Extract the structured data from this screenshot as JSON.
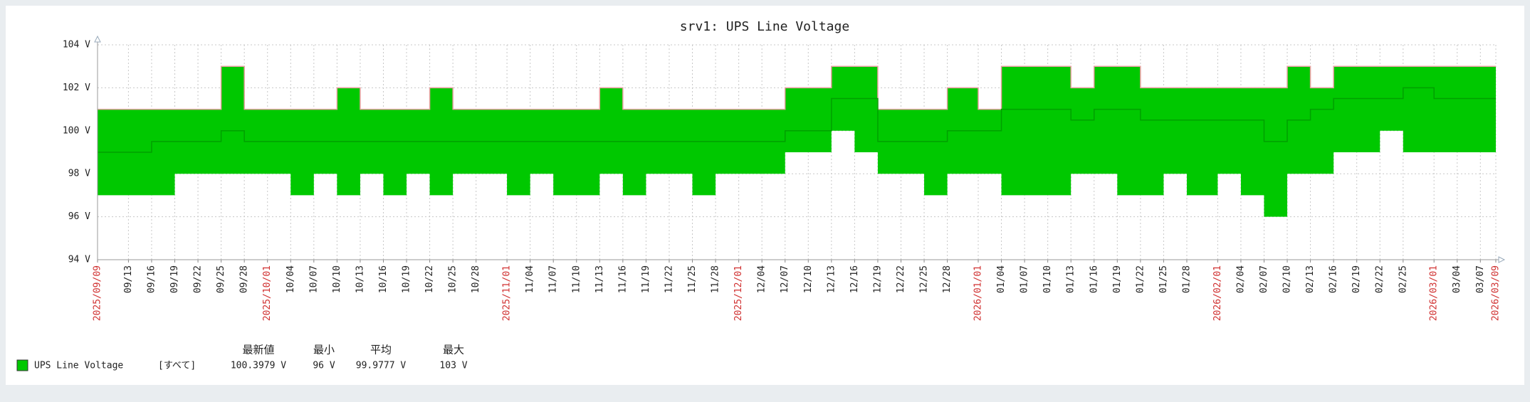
{
  "chart_data": {
    "type": "line",
    "title": "srv1: UPS Line Voltage",
    "x": [
      "2025/09/09",
      "2025/09/13",
      "2025/09/16",
      "2025/09/19",
      "2025/09/22",
      "2025/09/25",
      "2025/09/28",
      "2025/10/01",
      "2025/10/04",
      "2025/10/07",
      "2025/10/10",
      "2025/10/13",
      "2025/10/16",
      "2025/10/19",
      "2025/10/22",
      "2025/10/25",
      "2025/10/28",
      "2025/11/01",
      "2025/11/04",
      "2025/11/07",
      "2025/11/10",
      "2025/11/13",
      "2025/11/16",
      "2025/11/19",
      "2025/11/22",
      "2025/11/25",
      "2025/11/28",
      "2025/12/01",
      "2025/12/04",
      "2025/12/07",
      "2025/12/10",
      "2025/12/13",
      "2025/12/16",
      "2025/12/19",
      "2025/12/22",
      "2025/12/25",
      "2025/12/28",
      "2026/01/01",
      "2026/01/04",
      "2026/01/07",
      "2026/01/10",
      "2026/01/13",
      "2026/01/16",
      "2026/01/19",
      "2026/01/22",
      "2026/01/25",
      "2026/01/28",
      "2026/02/01",
      "2026/02/04",
      "2026/02/07",
      "2026/02/10",
      "2026/02/13",
      "2026/02/16",
      "2026/02/19",
      "2026/02/22",
      "2026/02/25",
      "2026/03/01",
      "2026/03/04",
      "2026/03/07",
      "2026/03/09"
    ],
    "series": [
      {
        "name": "UPS Line Voltage",
        "color": "#00c800",
        "avg_color": "#00a000",
        "max_color": "#e8a0a0",
        "max": [
          101,
          101,
          101,
          101,
          101,
          103,
          101,
          101,
          101,
          101,
          102,
          101,
          101,
          101,
          102,
          101,
          101,
          101,
          101,
          101,
          101,
          102,
          101,
          101,
          101,
          101,
          101,
          101,
          101,
          102,
          102,
          103,
          103,
          101,
          101,
          101,
          102,
          101,
          103,
          103,
          103,
          102,
          103,
          103,
          102,
          102,
          102,
          102,
          102,
          102,
          103,
          102,
          103,
          103,
          103,
          103,
          103,
          103,
          103,
          103
        ],
        "avg": [
          99,
          99,
          99.5,
          99.5,
          99.5,
          100,
          99.5,
          99.5,
          99.5,
          99.5,
          99.5,
          99.5,
          99.5,
          99.5,
          99.5,
          99.5,
          99.5,
          99.5,
          99.5,
          99.5,
          99.5,
          99.5,
          99.5,
          99.5,
          99.5,
          99.5,
          99.5,
          99.5,
          99.5,
          100,
          100,
          101.5,
          101.5,
          99.5,
          99.5,
          99.5,
          100,
          100,
          101,
          101,
          101,
          100.5,
          101,
          101,
          100.5,
          100.5,
          100.5,
          100.5,
          100.5,
          99.5,
          100.5,
          101,
          101.5,
          101.5,
          101.5,
          102,
          101.5,
          101.5,
          101.5,
          101.5
        ],
        "min": [
          97,
          97,
          97,
          98,
          98,
          98,
          98,
          98,
          97,
          98,
          97,
          98,
          97,
          98,
          97,
          98,
          98,
          97,
          98,
          97,
          97,
          98,
          97,
          98,
          98,
          97,
          98,
          98,
          98,
          99,
          99,
          100,
          99,
          98,
          98,
          97,
          98,
          98,
          97,
          97,
          97,
          98,
          98,
          97,
          97,
          98,
          97,
          98,
          97,
          96,
          98,
          98,
          99,
          99,
          100,
          99,
          99,
          99,
          99,
          99
        ]
      }
    ],
    "xlim": [
      "2025/09/09",
      "2026/03/09"
    ],
    "xticks": [
      {
        "value": "2025/09/09",
        "label": "2025/09/09",
        "color": "#d03030"
      },
      {
        "value": "2025/09/13",
        "label": "09/13",
        "color": "#222222"
      },
      {
        "value": "2025/09/16",
        "label": "09/16",
        "color": "#222222"
      },
      {
        "value": "2025/09/19",
        "label": "09/19",
        "color": "#222222"
      },
      {
        "value": "2025/09/22",
        "label": "09/22",
        "color": "#222222"
      },
      {
        "value": "2025/09/25",
        "label": "09/25",
        "color": "#222222"
      },
      {
        "value": "2025/09/28",
        "label": "09/28",
        "color": "#222222"
      },
      {
        "value": "2025/10/01",
        "label": "2025/10/01",
        "color": "#d03030"
      },
      {
        "value": "2025/10/04",
        "label": "10/04",
        "color": "#222222"
      },
      {
        "value": "2025/10/07",
        "label": "10/07",
        "color": "#222222"
      },
      {
        "value": "2025/10/10",
        "label": "10/10",
        "color": "#222222"
      },
      {
        "value": "2025/10/13",
        "label": "10/13",
        "color": "#222222"
      },
      {
        "value": "2025/10/16",
        "label": "10/16",
        "color": "#222222"
      },
      {
        "value": "2025/10/19",
        "label": "10/19",
        "color": "#222222"
      },
      {
        "value": "2025/10/22",
        "label": "10/22",
        "color": "#222222"
      },
      {
        "value": "2025/10/25",
        "label": "10/25",
        "color": "#222222"
      },
      {
        "value": "2025/10/28",
        "label": "10/28",
        "color": "#222222"
      },
      {
        "value": "2025/11/01",
        "label": "2025/11/01",
        "color": "#d03030"
      },
      {
        "value": "2025/11/04",
        "label": "11/04",
        "color": "#222222"
      },
      {
        "value": "2025/11/07",
        "label": "11/07",
        "color": "#222222"
      },
      {
        "value": "2025/11/10",
        "label": "11/10",
        "color": "#222222"
      },
      {
        "value": "2025/11/13",
        "label": "11/13",
        "color": "#222222"
      },
      {
        "value": "2025/11/16",
        "label": "11/16",
        "color": "#222222"
      },
      {
        "value": "2025/11/19",
        "label": "11/19",
        "color": "#222222"
      },
      {
        "value": "2025/11/22",
        "label": "11/22",
        "color": "#222222"
      },
      {
        "value": "2025/11/25",
        "label": "11/25",
        "color": "#222222"
      },
      {
        "value": "2025/11/28",
        "label": "11/28",
        "color": "#222222"
      },
      {
        "value": "2025/12/01",
        "label": "2025/12/01",
        "color": "#d03030"
      },
      {
        "value": "2025/12/04",
        "label": "12/04",
        "color": "#222222"
      },
      {
        "value": "2025/12/07",
        "label": "12/07",
        "color": "#222222"
      },
      {
        "value": "2025/12/10",
        "label": "12/10",
        "color": "#222222"
      },
      {
        "value": "2025/12/13",
        "label": "12/13",
        "color": "#222222"
      },
      {
        "value": "2025/12/16",
        "label": "12/16",
        "color": "#222222"
      },
      {
        "value": "2025/12/19",
        "label": "12/19",
        "color": "#222222"
      },
      {
        "value": "2025/12/22",
        "label": "12/22",
        "color": "#222222"
      },
      {
        "value": "2025/12/25",
        "label": "12/25",
        "color": "#222222"
      },
      {
        "value": "2025/12/28",
        "label": "12/28",
        "color": "#222222"
      },
      {
        "value": "2026/01/01",
        "label": "2026/01/01",
        "color": "#d03030"
      },
      {
        "value": "2026/01/04",
        "label": "01/04",
        "color": "#222222"
      },
      {
        "value": "2026/01/07",
        "label": "01/07",
        "color": "#222222"
      },
      {
        "value": "2026/01/10",
        "label": "01/10",
        "color": "#222222"
      },
      {
        "value": "2026/01/13",
        "label": "01/13",
        "color": "#222222"
      },
      {
        "value": "2026/01/16",
        "label": "01/16",
        "color": "#222222"
      },
      {
        "value": "2026/01/19",
        "label": "01/19",
        "color": "#222222"
      },
      {
        "value": "2026/01/22",
        "label": "01/22",
        "color": "#222222"
      },
      {
        "value": "2026/01/25",
        "label": "01/25",
        "color": "#222222"
      },
      {
        "value": "2026/01/28",
        "label": "01/28",
        "color": "#222222"
      },
      {
        "value": "2026/02/01",
        "label": "2026/02/01",
        "color": "#d03030"
      },
      {
        "value": "2026/02/04",
        "label": "02/04",
        "color": "#222222"
      },
      {
        "value": "2026/02/07",
        "label": "02/07",
        "color": "#222222"
      },
      {
        "value": "2026/02/10",
        "label": "02/10",
        "color": "#222222"
      },
      {
        "value": "2026/02/13",
        "label": "02/13",
        "color": "#222222"
      },
      {
        "value": "2026/02/16",
        "label": "02/16",
        "color": "#222222"
      },
      {
        "value": "2026/02/19",
        "label": "02/19",
        "color": "#222222"
      },
      {
        "value": "2026/02/22",
        "label": "02/22",
        "color": "#222222"
      },
      {
        "value": "2026/02/25",
        "label": "02/25",
        "color": "#222222"
      },
      {
        "value": "2026/03/01",
        "label": "2026/03/01",
        "color": "#d03030"
      },
      {
        "value": "2026/03/04",
        "label": "03/04",
        "color": "#222222"
      },
      {
        "value": "2026/03/07",
        "label": "03/07",
        "color": "#222222"
      },
      {
        "value": "2026/03/09",
        "label": "2026/03/09",
        "color": "#d03030"
      }
    ],
    "ylim": [
      94,
      104
    ],
    "yticks": [
      {
        "value": 94,
        "label": "94 V"
      },
      {
        "value": 96,
        "label": "96 V"
      },
      {
        "value": 98,
        "label": "98 V"
      },
      {
        "value": 100,
        "label": "100 V"
      },
      {
        "value": 102,
        "label": "102 V"
      },
      {
        "value": 104,
        "label": "104 V"
      }
    ],
    "grid": true,
    "legend": {
      "function": "[すべて]",
      "headers": [
        "最新値",
        "最小",
        "平均",
        "最大"
      ],
      "stats": [
        "100.3979 V",
        "96 V",
        "99.9777 V",
        "103 V"
      ]
    }
  }
}
